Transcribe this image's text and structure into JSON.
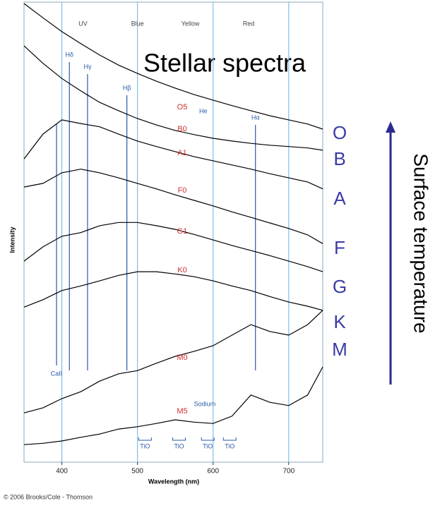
{
  "chart_data": {
    "type": "line",
    "title": "Stellar spectra",
    "xlabel": "Wavelength (nm)",
    "ylabel": "Intensity",
    "xlim": [
      350,
      745
    ],
    "ylim": [
      0,
      100
    ],
    "xticks": [
      400,
      500,
      600,
      700
    ],
    "x": [
      350,
      375,
      400,
      425,
      450,
      475,
      500,
      525,
      550,
      575,
      600,
      625,
      650,
      675,
      700,
      725,
      745
    ],
    "series": [
      {
        "name": "O5",
        "color": "#000000",
        "values": [
          99.7,
          96.6,
          93.6,
          91.0,
          88.5,
          86.3,
          84.5,
          82.8,
          81.3,
          79.9,
          78.7,
          77.5,
          76.4,
          75.3,
          74.4,
          73.5,
          72.4
        ]
      },
      {
        "name": "B0",
        "color": "#000000",
        "values": [
          90.5,
          86.7,
          83.4,
          80.7,
          78.2,
          76.4,
          74.7,
          73.3,
          72.1,
          71.2,
          70.4,
          69.8,
          69.3,
          68.9,
          68.6,
          68.3,
          67.8
        ]
      },
      {
        "name": "A1",
        "color": "#000000",
        "values": [
          65.9,
          71.3,
          74.4,
          73.6,
          72.9,
          71.3,
          69.8,
          68.6,
          67.5,
          66.4,
          65.5,
          64.6,
          63.7,
          62.7,
          61.8,
          60.9,
          59.4
        ]
      },
      {
        "name": "F0",
        "color": "#000000",
        "values": [
          59.8,
          60.6,
          62.9,
          63.7,
          62.9,
          61.8,
          60.6,
          59.4,
          58.1,
          56.9,
          55.7,
          54.4,
          53.2,
          52.0,
          50.8,
          49.4,
          47.5
        ]
      },
      {
        "name": "G1",
        "color": "#000000",
        "values": [
          43.7,
          46.8,
          49.1,
          49.9,
          51.4,
          52.1,
          52.1,
          51.4,
          50.6,
          49.5,
          48.3,
          47.1,
          46.0,
          44.9,
          43.7,
          42.5,
          41.4
        ]
      },
      {
        "name": "K0",
        "color": "#000000",
        "values": [
          33.7,
          35.3,
          37.3,
          38.3,
          39.4,
          40.6,
          41.4,
          41.4,
          40.9,
          40.3,
          39.4,
          38.3,
          37.3,
          36.0,
          34.8,
          33.9,
          33.0
        ]
      },
      {
        "name": "M0",
        "color": "#000000",
        "values": [
          10.7,
          11.8,
          13.8,
          15.3,
          17.6,
          19.2,
          19.9,
          21.5,
          23.0,
          24.1,
          25.3,
          27.6,
          29.9,
          28.4,
          27.6,
          29.9,
          33.0
        ]
      },
      {
        "name": "M5",
        "color": "#000000",
        "values": [
          3.8,
          4.1,
          4.6,
          5.4,
          6.1,
          7.2,
          7.7,
          8.4,
          9.2,
          8.7,
          8.4,
          10.0,
          14.6,
          13.0,
          12.3,
          14.6,
          20.7
        ]
      }
    ],
    "regions": [
      {
        "label": "UV",
        "x": 428
      },
      {
        "label": "Blue",
        "x": 500
      },
      {
        "label": "Yellow",
        "x": 570
      },
      {
        "label": "Red",
        "x": 647
      }
    ],
    "annotations": [
      {
        "label": "Hδ",
        "x": 410
      },
      {
        "label": "Hγ",
        "x": 434
      },
      {
        "label": "Hβ",
        "x": 486
      },
      {
        "label": "He",
        "x": 587
      },
      {
        "label": "Hα",
        "x": 656
      },
      {
        "label": "CaII",
        "x": 393
      },
      {
        "label": "Sodium",
        "x": 589
      },
      {
        "label": "TiO",
        "x": 510
      },
      {
        "label": "TiO",
        "x": 555
      },
      {
        "label": "TiO",
        "x": 593
      },
      {
        "label": "TiO",
        "x": 622
      }
    ],
    "spectral_classes": [
      "O",
      "B",
      "A",
      "F",
      "G",
      "K",
      "M"
    ],
    "arrow_label": "Surface temperature",
    "credit": "© 2006 Brooks/Cole - Thomson"
  }
}
